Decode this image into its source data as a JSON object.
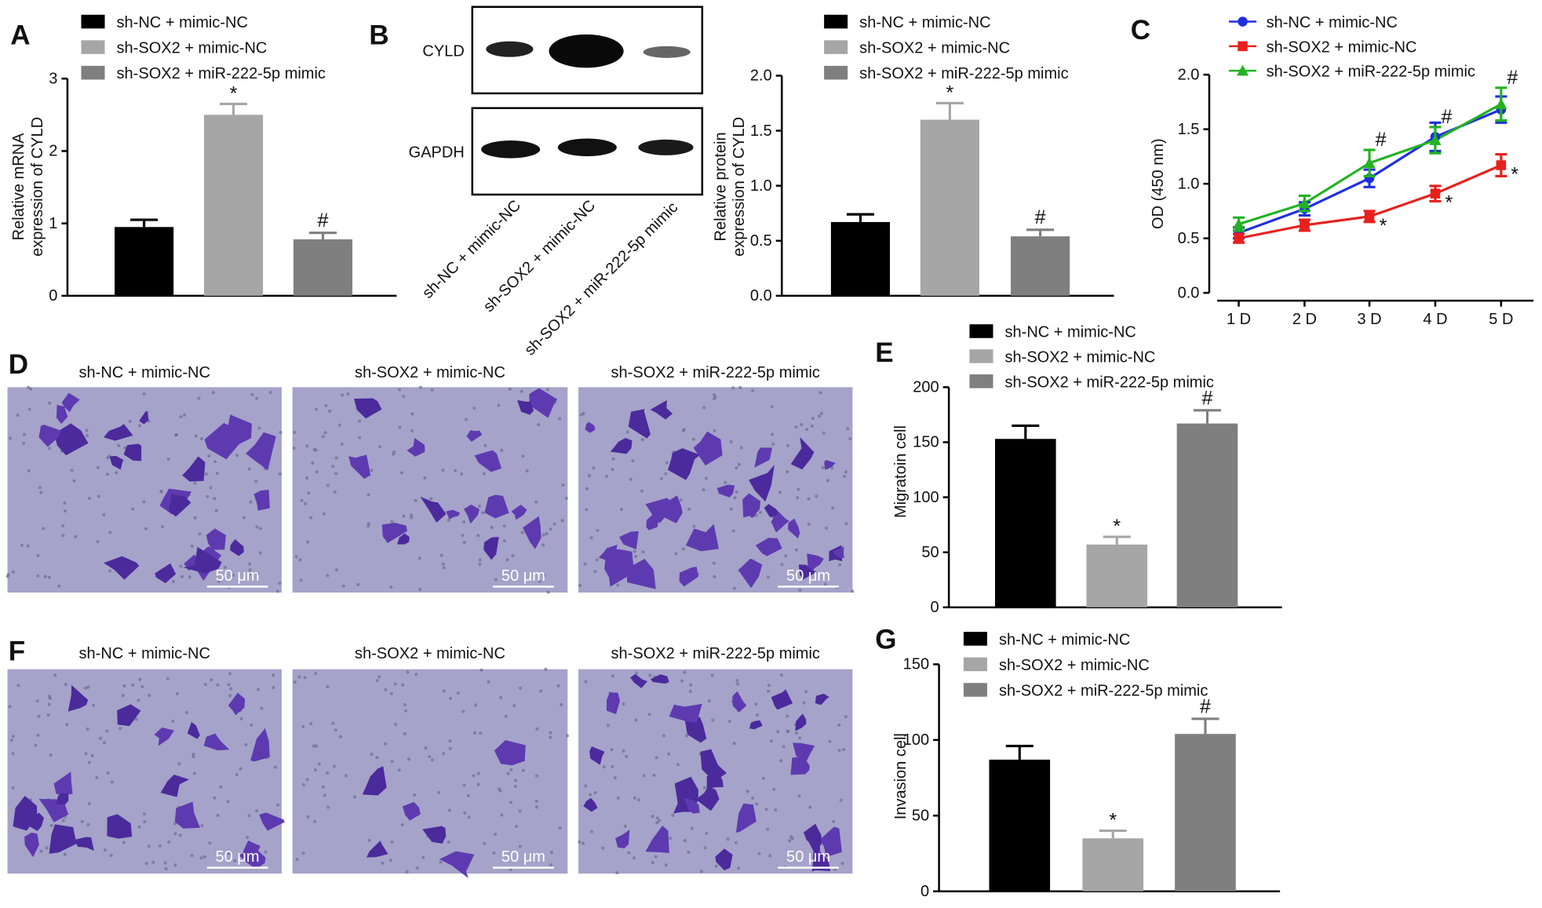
{
  "chart_data": [
    {
      "type": "bar",
      "ylabel": [
        "Relative mRNA",
        "expression of CYLD"
      ],
      "ylim": [
        0,
        3
      ],
      "yticks": [
        0,
        1,
        2,
        3
      ],
      "series": [
        {
          "name": "sh-NC + mimic-NC",
          "color": "#000000",
          "values": [
            0.95
          ],
          "errors": [
            0.1
          ]
        },
        {
          "name": "sh-SOX2 + mimic-NC",
          "color": "#a6a6a6",
          "values": [
            2.5
          ],
          "errors": [
            0.15
          ],
          "annotation": "*"
        },
        {
          "name": "sh-SOX2 + miR-222-5p mimic",
          "color": "#7f7f7f",
          "values": [
            0.78
          ],
          "errors": [
            0.09
          ],
          "annotation": "#"
        }
      ]
    },
    {
      "type": "bar",
      "ylabel": [
        "Relative protein",
        "expression of CYLD"
      ],
      "ylim": [
        0,
        2
      ],
      "yticks": [
        {
          "value": 0,
          "label": "0.0"
        },
        0.5,
        {
          "value": 1,
          "label": "1.0"
        },
        1.5,
        {
          "value": 2,
          "label": "2.0"
        }
      ],
      "series": [
        {
          "name": "sh-NC + mimic-NC",
          "color": "#000000",
          "values": [
            0.67
          ],
          "errors": [
            0.07
          ]
        },
        {
          "name": "sh-SOX2 + mimic-NC",
          "color": "#a6a6a6",
          "values": [
            1.6
          ],
          "errors": [
            0.15
          ],
          "annotation": "*"
        },
        {
          "name": "sh-SOX2 + miR-222-5p mimic",
          "color": "#7f7f7f",
          "values": [
            0.54
          ],
          "errors": [
            0.06
          ],
          "annotation": "#"
        }
      ]
    },
    {
      "type": "line",
      "label": "C",
      "ylabel": [
        "OD (450 nm)"
      ],
      "categories": [
        "1 D",
        "2 D",
        "3 D",
        "4 D",
        "5 D"
      ],
      "ylim": [
        0,
        2
      ],
      "yticks": [
        {
          "value": 0,
          "label": "0.0"
        },
        0.5,
        {
          "value": 1,
          "label": "1.0"
        },
        1.5,
        {
          "value": 2,
          "label": "2.0"
        }
      ],
      "series": [
        {
          "name": "sh-NC + mimic-NC",
          "color": "#1f2fe0",
          "marker": "circle",
          "values": [
            0.55,
            0.77,
            1.05,
            1.43,
            1.68
          ],
          "errors": [
            0.05,
            0.06,
            0.08,
            0.13,
            0.12
          ]
        },
        {
          "name": "sh-SOX2 + mimic-NC",
          "color": "#e8201c",
          "marker": "square",
          "values": [
            0.5,
            0.62,
            0.7,
            0.91,
            1.17
          ],
          "errors": [
            0.04,
            0.05,
            0.05,
            0.07,
            0.1
          ],
          "annotations": [
            null,
            null,
            "*",
            "*",
            "*"
          ]
        },
        {
          "name": "sh-SOX2 + miR-222-5p mimic",
          "color": "#22b322",
          "marker": "triangle",
          "values": [
            0.63,
            0.82,
            1.19,
            1.4,
            1.73
          ],
          "errors": [
            0.06,
            0.07,
            0.12,
            0.12,
            0.15
          ],
          "annotations": [
            null,
            null,
            "#",
            "#",
            "#"
          ]
        }
      ]
    },
    {
      "type": "bar",
      "label": "E",
      "ylabel": [
        "Migratoin cell"
      ],
      "ylim": [
        0,
        200
      ],
      "yticks": [
        0,
        50,
        100,
        150,
        200
      ],
      "series": [
        {
          "name": "sh-NC + mimic-NC",
          "color": "#000000",
          "values": [
            153
          ],
          "errors": [
            12
          ]
        },
        {
          "name": "sh-SOX2 + mimic-NC",
          "color": "#a6a6a6",
          "values": [
            57
          ],
          "errors": [
            7
          ],
          "annotation": "*"
        },
        {
          "name": "sh-SOX2 + miR-222-5p mimic",
          "color": "#7f7f7f",
          "values": [
            167
          ],
          "errors": [
            12
          ],
          "annotation": "#"
        }
      ]
    },
    {
      "type": "bar",
      "label": "G",
      "ylabel": [
        "Invasion cell"
      ],
      "ylim": [
        0,
        150
      ],
      "yticks": [
        0,
        50,
        100,
        150
      ],
      "series": [
        {
          "name": "sh-NC + mimic-NC",
          "color": "#000000",
          "values": [
            87
          ],
          "errors": [
            9
          ]
        },
        {
          "name": "sh-SOX2 + mimic-NC",
          "color": "#a6a6a6",
          "values": [
            35
          ],
          "errors": [
            5
          ],
          "annotation": "*"
        },
        {
          "name": "sh-SOX2 + miR-222-5p mimic",
          "color": "#7f7f7f",
          "values": [
            104
          ],
          "errors": [
            10
          ],
          "annotation": "#"
        }
      ]
    }
  ],
  "panel_a_label": "A",
  "blot": {
    "label": "B",
    "proteins": [
      "CYLD",
      "GAPDH"
    ],
    "lanes": [
      "sh-NC + mimic-NC",
      "sh-SOX2 + mimic-NC",
      "sh-SOX2 + miR-222-5p mimic"
    ]
  },
  "micrographs": [
    {
      "label": "D",
      "images": [
        {
          "title": "sh-NC + mimic-NC",
          "scale_bar": "50 μm"
        },
        {
          "title": "sh-SOX2 + mimic-NC",
          "scale_bar": "50 μm"
        },
        {
          "title": "sh-SOX2 + miR-222-5p mimic",
          "scale_bar": "50 μm"
        }
      ]
    },
    {
      "label": "F",
      "images": [
        {
          "title": "sh-NC + mimic-NC",
          "scale_bar": "50 μm"
        },
        {
          "title": "sh-SOX2 + mimic-NC",
          "scale_bar": "50 μm"
        },
        {
          "title": "sh-SOX2 + miR-222-5p mimic",
          "scale_bar": "50 μm"
        }
      ]
    }
  ]
}
